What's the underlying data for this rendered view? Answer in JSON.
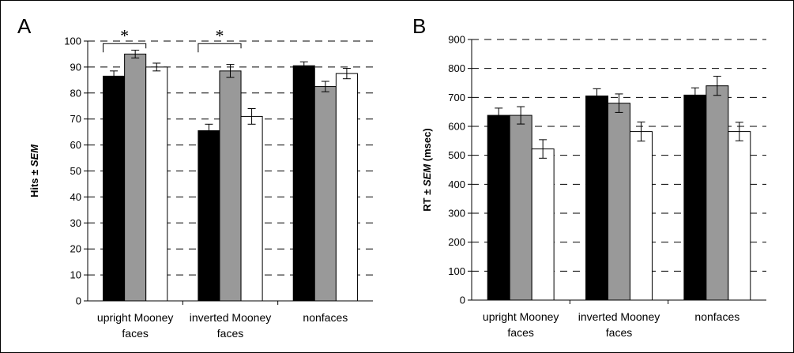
{
  "chart_data": [
    {
      "panel_label": "A",
      "type": "bar",
      "categories": [
        [
          "upright Mooney",
          "faces"
        ],
        [
          "inverted Mooney",
          "faces"
        ],
        [
          "nonfaces"
        ]
      ],
      "ylabel_plain": "Hits ± ",
      "ylabel_italic": "SEM",
      "ylabel_suffix": "",
      "ylim": [
        0,
        100
      ],
      "yticks": [
        "0",
        "10",
        "20",
        "30",
        "40",
        "50",
        "60",
        "70",
        "80",
        "90",
        "100"
      ],
      "grid": true,
      "series": [
        {
          "color": "#000000",
          "values": [
            86.5,
            65.5,
            90.5
          ],
          "errors": [
            2,
            2.5,
            1.5
          ]
        },
        {
          "color": "#999999",
          "values": [
            95,
            88.5,
            82.5
          ],
          "errors": [
            1.5,
            2.5,
            2
          ]
        },
        {
          "color": "#ffffff",
          "values": [
            90,
            71,
            87.5
          ],
          "errors": [
            1.5,
            3,
            2
          ]
        }
      ],
      "annotations": [
        {
          "text": "*",
          "category": 0,
          "from_series": 0,
          "to_series": 1,
          "level": 99
        },
        {
          "text": "*",
          "category": 1,
          "from_series": 0,
          "to_series": 1,
          "level": 99
        }
      ]
    },
    {
      "panel_label": "B",
      "type": "bar",
      "categories": [
        [
          "upright Mooney",
          "faces"
        ],
        [
          "inverted Mooney",
          "faces"
        ],
        [
          "nonfaces"
        ]
      ],
      "ylabel_plain": "RT ± ",
      "ylabel_italic": "SEM",
      "ylabel_suffix": " (msec)",
      "ylim": [
        0,
        900
      ],
      "yticks": [
        "0",
        "100",
        "200",
        "300",
        "400",
        "500",
        "600",
        "700",
        "800",
        "900"
      ],
      "grid": true,
      "series": [
        {
          "color": "#000000",
          "values": [
            638,
            705,
            708
          ],
          "errors": [
            25,
            25,
            25
          ]
        },
        {
          "color": "#999999",
          "values": [
            638,
            680,
            740
          ],
          "errors": [
            30,
            32,
            33
          ]
        },
        {
          "color": "#ffffff",
          "values": [
            522,
            582,
            582
          ],
          "errors": [
            32,
            33,
            32
          ]
        }
      ],
      "annotations": []
    }
  ]
}
